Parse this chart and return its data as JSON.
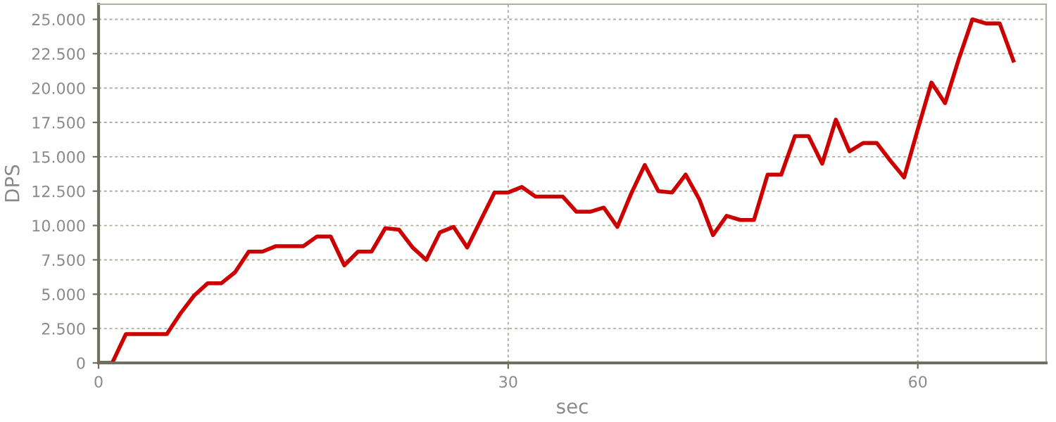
{
  "chart_data": {
    "type": "line",
    "xlabel": "sec",
    "ylabel": "DPS",
    "x": [
      0,
      1,
      2,
      3,
      4,
      5,
      6,
      7,
      8,
      9,
      10,
      11,
      12,
      13,
      14,
      15,
      16,
      17,
      18,
      19,
      20,
      21,
      22,
      23,
      24,
      25,
      26,
      27,
      28,
      29,
      30,
      31,
      32,
      33,
      34,
      35,
      36,
      37,
      38,
      39,
      40,
      41,
      42,
      43,
      44,
      45,
      46,
      47,
      48,
      49,
      50,
      51,
      52,
      53,
      54,
      55,
      56,
      57,
      58,
      59,
      60,
      61,
      62,
      63,
      64,
      65,
      66,
      67
    ],
    "series": [
      {
        "color": "#cc0000",
        "values": [
          0,
          0,
          2100,
          2100,
          2100,
          2100,
          3600,
          4900,
          5800,
          5800,
          6600,
          8100,
          8100,
          8500,
          8500,
          8500,
          9200,
          9200,
          7100,
          8100,
          8100,
          9800,
          9700,
          8400,
          7500,
          9500,
          9900,
          8400,
          10400,
          12400,
          12400,
          12800,
          12100,
          12100,
          12100,
          11000,
          11000,
          11300,
          9900,
          12300,
          14400,
          12500,
          12400,
          13700,
          11900,
          9300,
          10700,
          10400,
          10400,
          13700,
          13700,
          16500,
          16500,
          14500,
          17700,
          15400,
          16000,
          16000,
          14700,
          13500,
          17000,
          20400,
          18900,
          22100,
          25000,
          24700,
          24700,
          22000
        ]
      }
    ],
    "xlim": [
      0,
      69.4
    ],
    "ylim": [
      0,
      26100
    ],
    "xticks": [
      0,
      30,
      60
    ],
    "yticks": [
      {
        "value": 0,
        "label": "0"
      },
      {
        "value": 2500,
        "label": "2.500"
      },
      {
        "value": 5000,
        "label": "5.000"
      },
      {
        "value": 7500,
        "label": "7.500"
      },
      {
        "value": 10000,
        "label": "10.000"
      },
      {
        "value": 12500,
        "label": "12.500"
      },
      {
        "value": 15000,
        "label": "15.000"
      },
      {
        "value": 17500,
        "label": "17.500"
      },
      {
        "value": 20000,
        "label": "20.000"
      },
      {
        "value": 22500,
        "label": "22.500"
      },
      {
        "value": 25000,
        "label": "25.000"
      }
    ],
    "grid": true,
    "legend": false,
    "marker": "none",
    "line_style": "solid"
  }
}
